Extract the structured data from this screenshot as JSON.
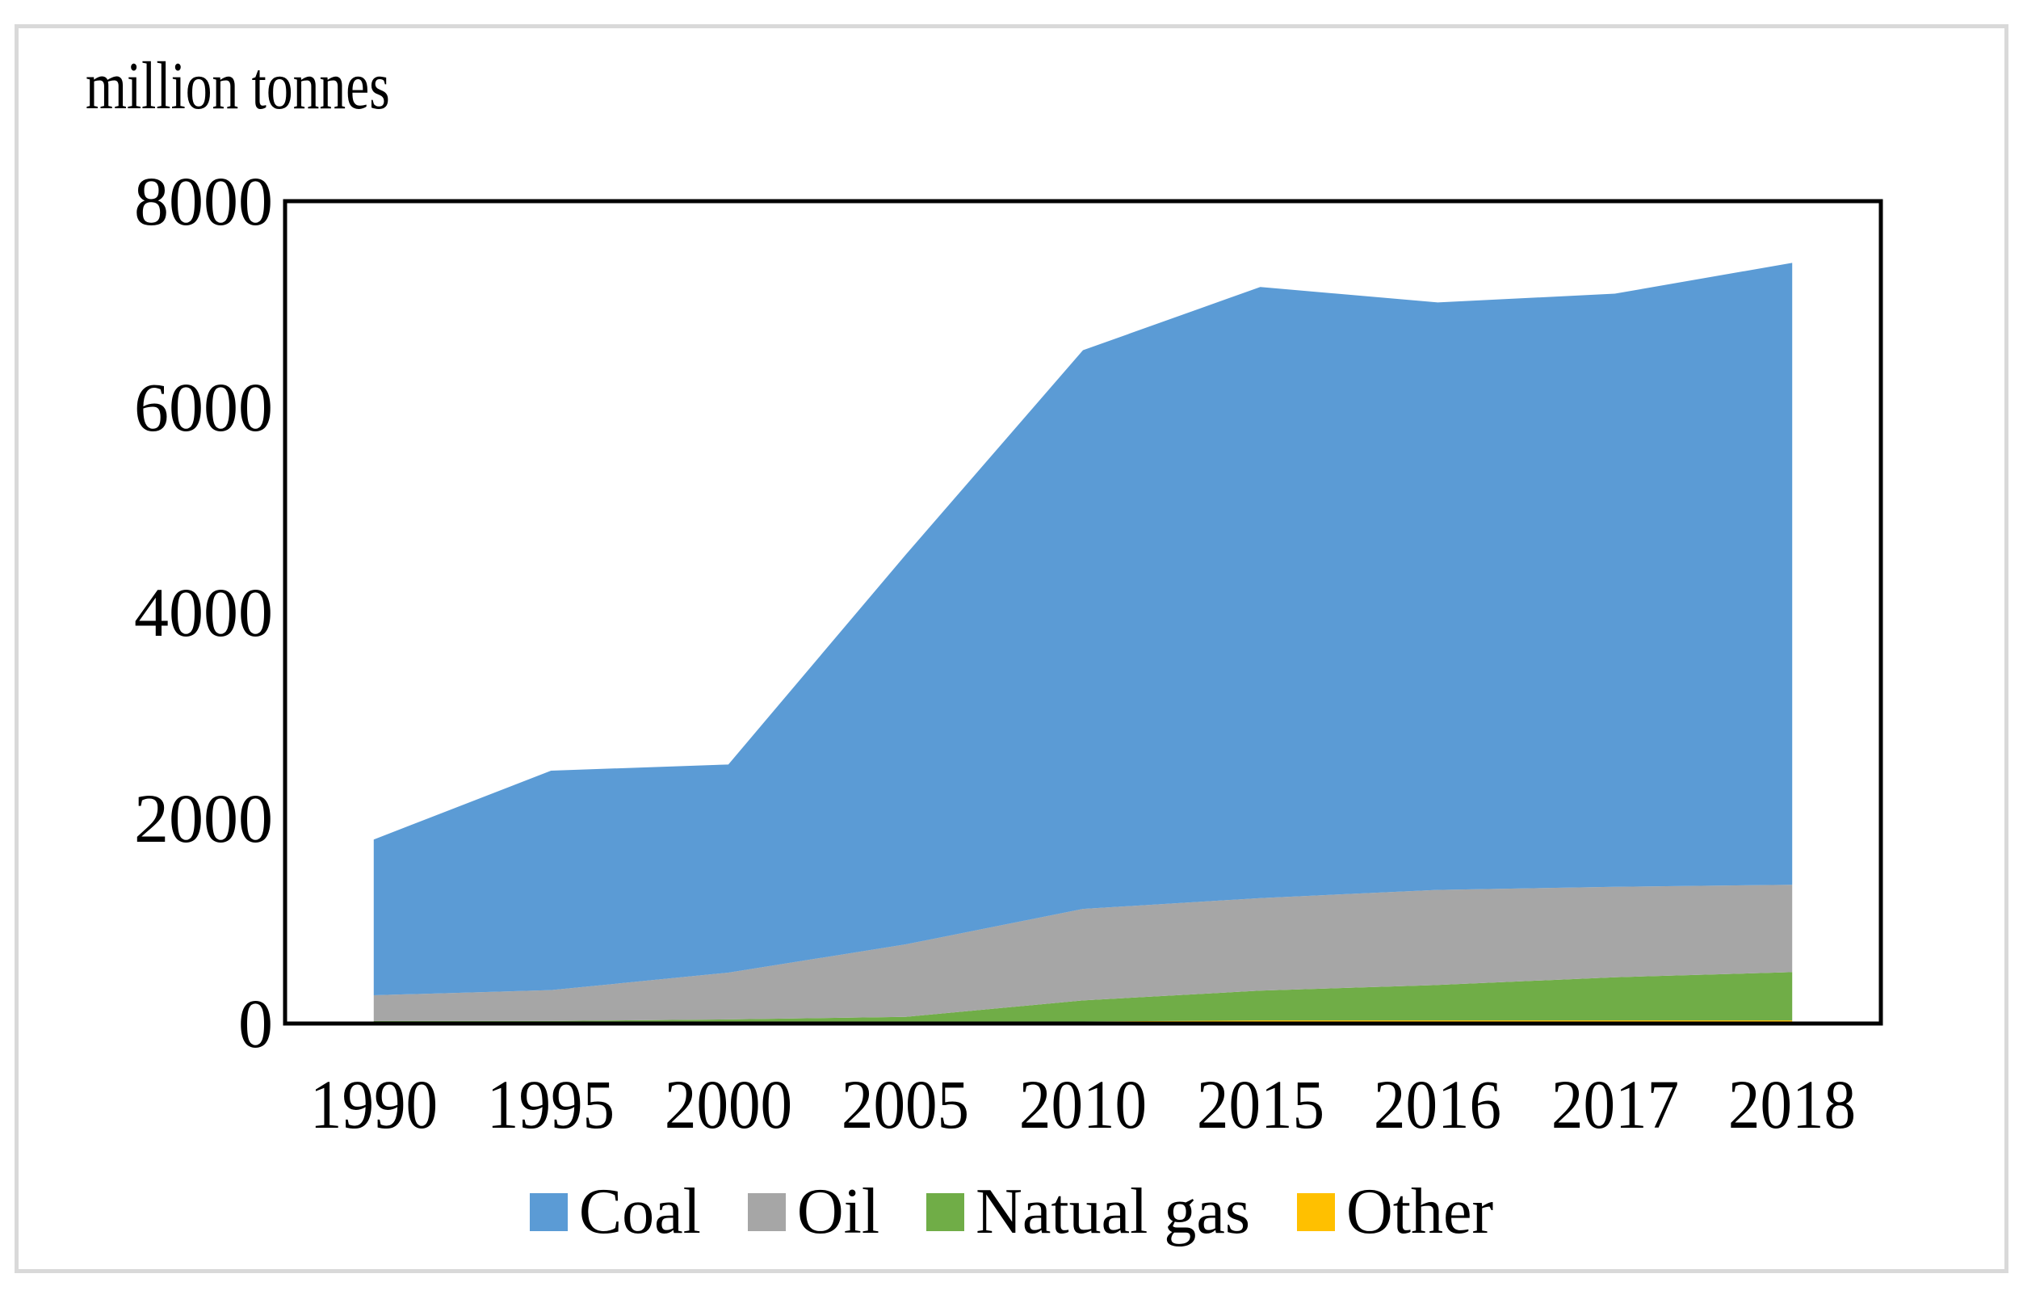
{
  "chart_data": {
    "type": "area",
    "stacked": true,
    "title": "million tonnes",
    "categories": [
      "1990",
      "1995",
      "2000",
      "2005",
      "2010",
      "2015",
      "2016",
      "2017",
      "2018"
    ],
    "series": [
      {
        "name": "Coal",
        "color": "#5B9BD5",
        "values": [
          1515,
          2135,
          2025,
          3790,
          5435,
          5945,
          5715,
          5770,
          6050
        ]
      },
      {
        "name": "Oil",
        "color": "#A6A6A6",
        "values": [
          250,
          300,
          455,
          705,
          890,
          900,
          925,
          880,
          850
        ]
      },
      {
        "name": "Natual gas",
        "color": "#70AD47",
        "values": [
          15,
          15,
          28,
          50,
          205,
          290,
          345,
          420,
          470
        ]
      },
      {
        "name": "Other",
        "color": "#FFC000",
        "values": [
          10,
          10,
          12,
          15,
          20,
          30,
          30,
          30,
          30
        ]
      }
    ],
    "totals": [
      1790,
      2460,
      2520,
      4560,
      6550,
      7165,
      7015,
      7100,
      7400
    ],
    "ylabel": "million tonnes",
    "xlabel": "",
    "ylim": [
      0,
      8000
    ],
    "y_ticks": [
      0,
      2000,
      4000,
      6000,
      8000
    ],
    "grid": false,
    "legend_position": "bottom",
    "colors": {
      "axis": "#000000",
      "frame_border": "#D9D9D9",
      "background": "#FFFFFF"
    }
  }
}
